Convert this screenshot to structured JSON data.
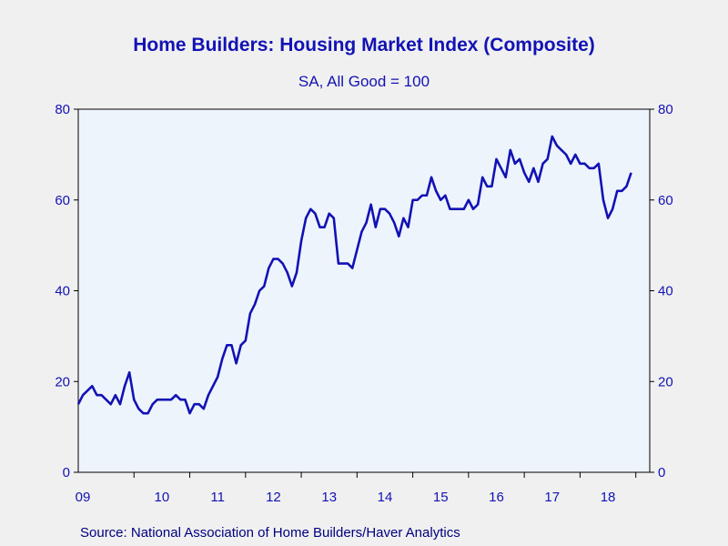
{
  "chart_data": {
    "type": "line",
    "title": "Home Builders: Housing Market Index (Composite)",
    "subtitle": "SA, All Good = 100",
    "source": "Source:  National Association of Home Builders/Haver Analytics",
    "xlabel": "",
    "ylabel": "",
    "ylim": [
      0,
      80
    ],
    "yticks": [
      "0",
      "20",
      "40",
      "60",
      "80"
    ],
    "x_tick_labels": [
      "09",
      "10",
      "11",
      "12",
      "13",
      "14",
      "15",
      "16",
      "17",
      "18"
    ],
    "x_range": [
      "2009-01",
      "2019-04"
    ],
    "grid": false,
    "legend": "none",
    "colors": {
      "line": "#1212b4",
      "axis": "#1212b4",
      "plot_background": "#eef4fc",
      "page_background": "#f0f0f0"
    },
    "series": [
      {
        "x_start": "2009-01",
        "frequency": "monthly",
        "values": [
          15,
          17,
          18,
          19,
          17,
          17,
          16,
          15,
          17,
          15,
          19,
          22,
          16,
          14,
          13,
          13,
          15,
          16,
          16,
          16,
          16,
          17,
          16,
          16,
          13,
          15,
          15,
          14,
          17,
          19,
          21,
          25,
          28,
          28,
          24,
          28,
          29,
          35,
          37,
          40,
          41,
          45,
          47,
          47,
          46,
          44,
          41,
          44,
          51,
          56,
          58,
          57,
          54,
          54,
          57,
          56,
          46,
          46,
          46,
          45,
          49,
          53,
          55,
          59,
          54,
          58,
          58,
          57,
          55,
          52,
          56,
          54,
          60,
          60,
          61,
          61,
          65,
          62,
          60,
          61,
          58,
          58,
          58,
          58,
          60,
          58,
          59,
          65,
          63,
          63,
          69,
          67,
          65,
          71,
          68,
          69,
          66,
          64,
          67,
          64,
          68,
          69,
          74,
          72,
          71,
          70,
          68,
          70,
          68,
          68,
          67,
          67,
          68,
          60,
          56,
          58,
          62,
          62,
          63,
          66
        ]
      }
    ]
  }
}
